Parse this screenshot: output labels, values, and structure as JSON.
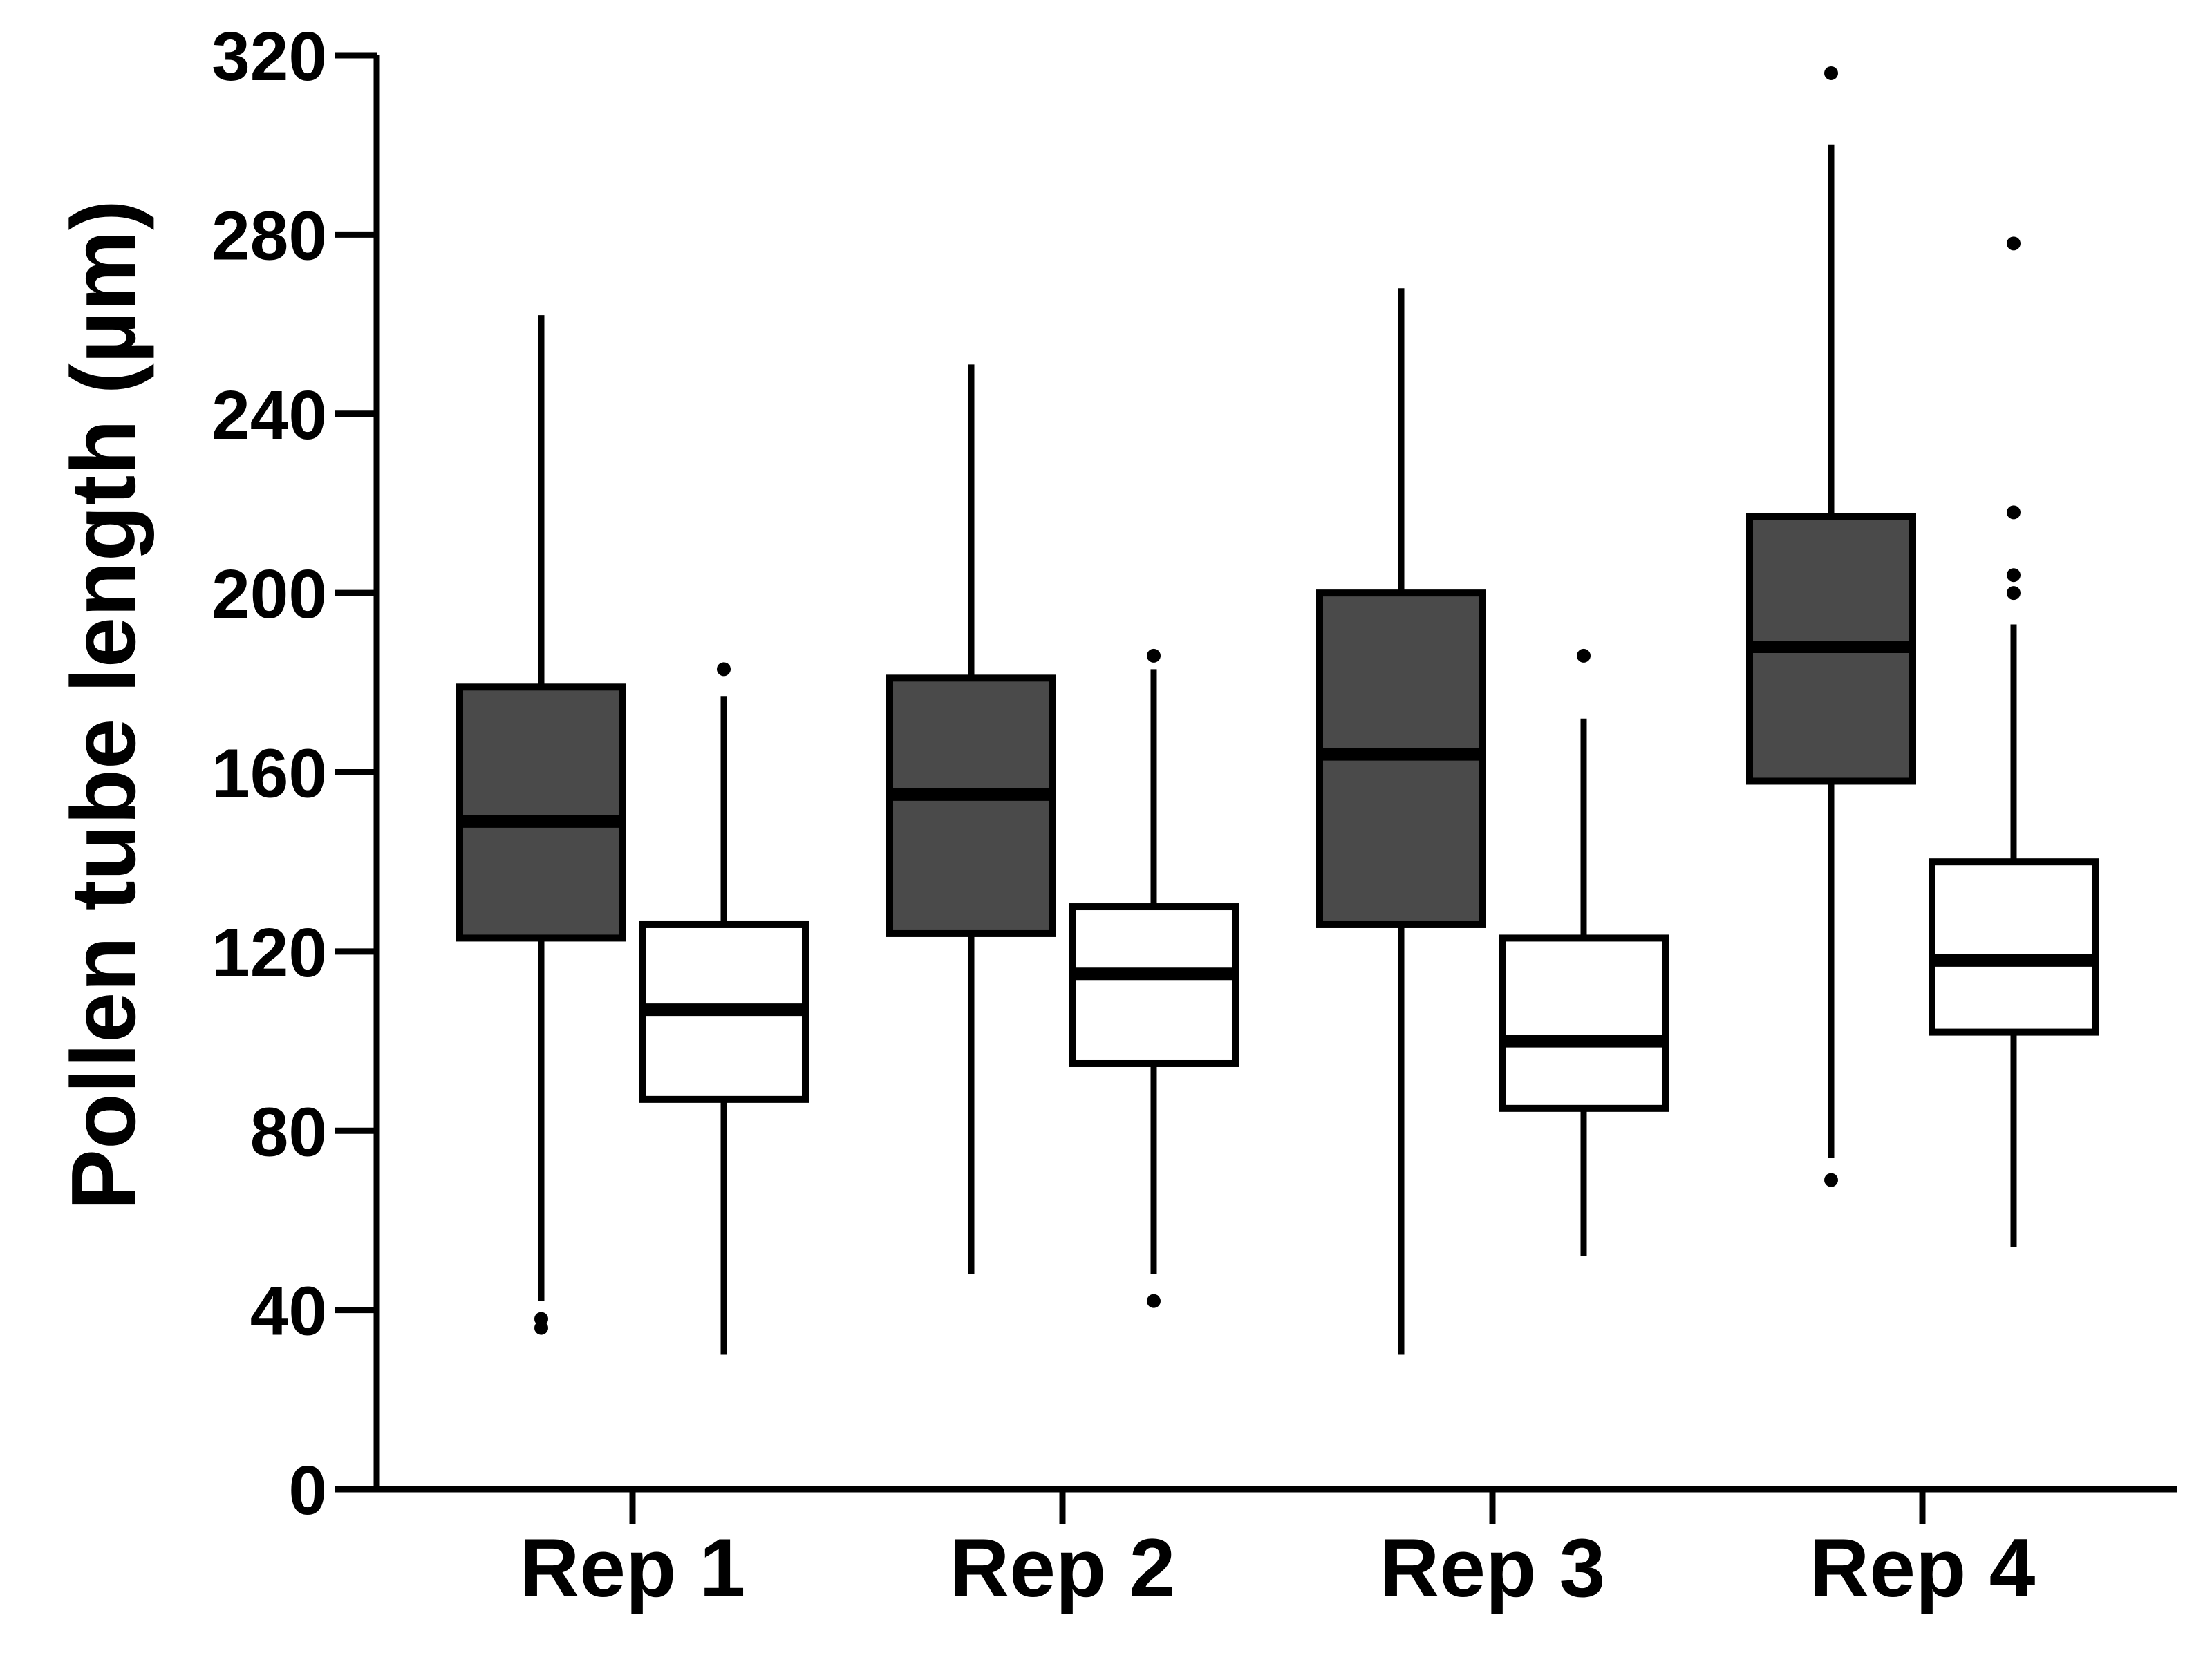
{
  "chart_data": {
    "type": "box",
    "ylabel": "Pollen tube length (µm)",
    "xlabel": "",
    "ylim": [
      0,
      320
    ],
    "yticks": [
      0,
      40,
      80,
      120,
      160,
      200,
      240,
      280,
      320
    ],
    "ytick_labels": [
      "0",
      "40",
      "80",
      "120",
      "160",
      "200",
      "240",
      "280",
      "320"
    ],
    "categories": [
      "Rep 1",
      "Rep 2",
      "Rep 3",
      "Rep 4"
    ],
    "grid": false,
    "legend": "none",
    "series": [
      {
        "fill": "#4a4a4a",
        "boxes": [
          {
            "q1": 123,
            "median": 149,
            "q3": 179,
            "whisker_low": 42,
            "whisker_high": 262,
            "outliers": [
              38,
              36
            ]
          },
          {
            "q1": 124,
            "median": 155,
            "q3": 181,
            "whisker_low": 48,
            "whisker_high": 251,
            "outliers": []
          },
          {
            "q1": 126,
            "median": 164,
            "q3": 200,
            "whisker_low": 30,
            "whisker_high": 268,
            "outliers": []
          },
          {
            "q1": 158,
            "median": 188,
            "q3": 217,
            "whisker_low": 74,
            "whisker_high": 300,
            "outliers": [
              69,
              316
            ]
          }
        ]
      },
      {
        "fill": "#ffffff",
        "boxes": [
          {
            "q1": 87,
            "median": 107,
            "q3": 126,
            "whisker_low": 30,
            "whisker_high": 177,
            "outliers": [
              183
            ]
          },
          {
            "q1": 95,
            "median": 115,
            "q3": 130,
            "whisker_low": 48,
            "whisker_high": 183,
            "outliers": [
              186,
              42
            ]
          },
          {
            "q1": 85,
            "median": 100,
            "q3": 123,
            "whisker_low": 52,
            "whisker_high": 172,
            "outliers": [
              186
            ]
          },
          {
            "q1": 102,
            "median": 118,
            "q3": 140,
            "whisker_low": 54,
            "whisker_high": 193,
            "outliers": [
              200,
              204,
              218,
              278
            ]
          }
        ]
      }
    ]
  }
}
